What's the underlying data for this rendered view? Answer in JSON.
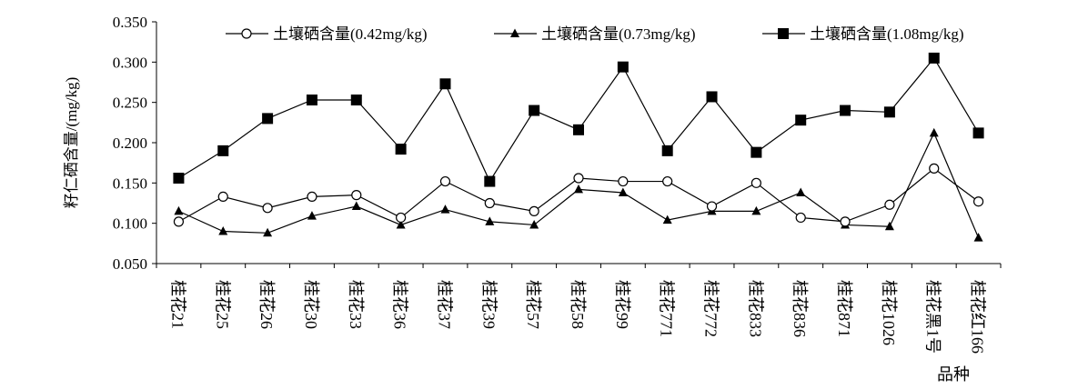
{
  "chart_data": {
    "type": "line",
    "title": "",
    "ylabel": "籽仁硒含量/(mg/kg)",
    "xlabel": "品种",
    "ylim": [
      0.05,
      0.35
    ],
    "yticks": [
      "0.050",
      "0.100",
      "0.150",
      "0.200",
      "0.250",
      "0.300",
      "0.350"
    ],
    "grid": false,
    "legend_position": "top",
    "categories": [
      "桂花21",
      "桂花25",
      "桂花26",
      "桂花30",
      "桂花33",
      "桂花36",
      "桂花37",
      "桂花39",
      "桂花57",
      "桂花58",
      "桂花99",
      "桂花771",
      "桂花772",
      "桂花833",
      "桂花836",
      "桂花871",
      "桂花1026",
      "桂花黑1号",
      "桂花红166"
    ],
    "series": [
      {
        "name": "土壤硒含量(0.42mg/kg)",
        "marker": "circle-open",
        "values": [
          0.102,
          0.133,
          0.119,
          0.133,
          0.135,
          0.107,
          0.152,
          0.125,
          0.115,
          0.156,
          0.152,
          0.152,
          0.121,
          0.15,
          0.107,
          0.102,
          0.123,
          0.168,
          0.127
        ]
      },
      {
        "name": "土壤硒含量(0.73mg/kg)",
        "marker": "triangle-filled",
        "values": [
          0.115,
          0.09,
          0.088,
          0.109,
          0.121,
          0.098,
          0.117,
          0.102,
          0.098,
          0.142,
          0.138,
          0.104,
          0.115,
          0.115,
          0.138,
          0.098,
          0.096,
          0.212,
          0.082
        ]
      },
      {
        "name": "土壤硒含量(1.08mg/kg)",
        "marker": "square-filled",
        "values": [
          0.156,
          0.19,
          0.23,
          0.253,
          0.253,
          0.192,
          0.273,
          0.152,
          0.24,
          0.216,
          0.294,
          0.19,
          0.257,
          0.188,
          0.228,
          0.24,
          0.238,
          0.305,
          0.212
        ]
      }
    ],
    "colors": {
      "line": "#000000",
      "marker_fill": "#000000",
      "open_fill": "#ffffff"
    }
  }
}
